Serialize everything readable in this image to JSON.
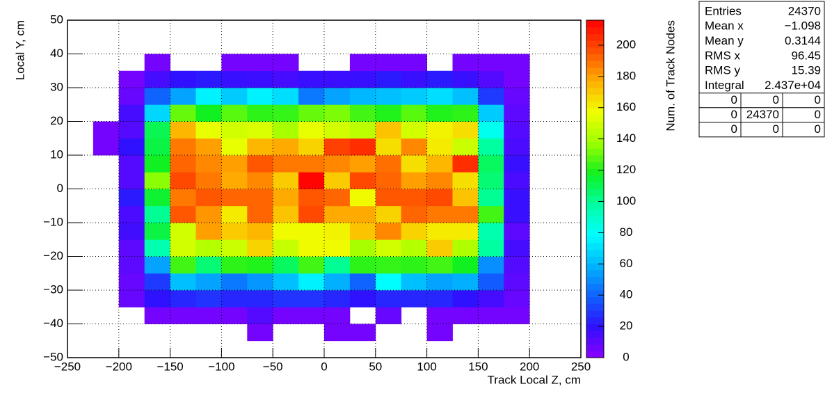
{
  "chart_data": {
    "type": "heatmap",
    "x_label": "Track Local Z, cm",
    "y_label": "Local Y, cm",
    "z_label": "Num. of Track Nodes",
    "x_bins": [
      -250,
      -225,
      -200,
      -175,
      -150,
      -125,
      -100,
      -75,
      -50,
      -25,
      0,
      25,
      50,
      75,
      100,
      125,
      150,
      175,
      200,
      225,
      250
    ],
    "y_bins": [
      -50,
      -45,
      -40,
      -35,
      -30,
      -25,
      -20,
      -15,
      -10,
      -5,
      0,
      5,
      10,
      15,
      20,
      25,
      30,
      35,
      40,
      45,
      50
    ],
    "z": [
      [
        0,
        0,
        0,
        0,
        0,
        0,
        0,
        0,
        0,
        0,
        0,
        0,
        0,
        0,
        0,
        0,
        0,
        0,
        0,
        0
      ],
      [
        0,
        0,
        0,
        0,
        0,
        0,
        0,
        5,
        0,
        0,
        5,
        5,
        0,
        0,
        5,
        0,
        0,
        0,
        0,
        0
      ],
      [
        0,
        0,
        0,
        5,
        5,
        5,
        5,
        12,
        5,
        5,
        5,
        0,
        8,
        0,
        5,
        5,
        5,
        5,
        0,
        0
      ],
      [
        0,
        0,
        8,
        20,
        25,
        28,
        25,
        25,
        28,
        28,
        25,
        20,
        25,
        25,
        25,
        20,
        15,
        8,
        0,
        0
      ],
      [
        0,
        0,
        8,
        30,
        62,
        55,
        45,
        52,
        62,
        75,
        58,
        40,
        78,
        62,
        55,
        58,
        38,
        10,
        0,
        0
      ],
      [
        0,
        0,
        10,
        55,
        125,
        105,
        122,
        120,
        108,
        125,
        100,
        122,
        123,
        122,
        125,
        118,
        50,
        12,
        0,
        0
      ],
      [
        0,
        0,
        10,
        95,
        150,
        143,
        148,
        168,
        147,
        158,
        158,
        140,
        150,
        143,
        170,
        142,
        98,
        15,
        0,
        0
      ],
      [
        0,
        0,
        16,
        112,
        150,
        180,
        170,
        175,
        158,
        158,
        160,
        172,
        185,
        168,
        162,
        162,
        95,
        10,
        0,
        0
      ],
      [
        0,
        0,
        14,
        100,
        195,
        182,
        162,
        192,
        172,
        198,
        178,
        178,
        168,
        192,
        188,
        188,
        125,
        18,
        0,
        0
      ],
      [
        0,
        0,
        22,
        115,
        188,
        195,
        192,
        192,
        178,
        195,
        192,
        158,
        195,
        195,
        198,
        172,
        100,
        18,
        0,
        0
      ],
      [
        0,
        0,
        12,
        135,
        198,
        188,
        178,
        185,
        170,
        215,
        170,
        198,
        192,
        180,
        185,
        165,
        105,
        14,
        0,
        0
      ],
      [
        0,
        0,
        12,
        118,
        192,
        185,
        180,
        195,
        188,
        188,
        185,
        180,
        190,
        165,
        175,
        205,
        108,
        18,
        0,
        0
      ],
      [
        0,
        5,
        20,
        112,
        188,
        180,
        155,
        175,
        178,
        168,
        200,
        205,
        165,
        185,
        162,
        148,
        98,
        14,
        0,
        0
      ],
      [
        0,
        5,
        12,
        110,
        175,
        155,
        150,
        152,
        140,
        155,
        150,
        145,
        172,
        150,
        160,
        165,
        82,
        12,
        0,
        0
      ],
      [
        0,
        0,
        15,
        68,
        130,
        118,
        128,
        122,
        123,
        130,
        133,
        125,
        120,
        128,
        120,
        122,
        65,
        10,
        0,
        0
      ],
      [
        0,
        0,
        8,
        40,
        55,
        75,
        65,
        75,
        70,
        45,
        55,
        60,
        62,
        65,
        70,
        62,
        30,
        8,
        0,
        0
      ],
      [
        0,
        0,
        5,
        15,
        20,
        22,
        18,
        17,
        15,
        18,
        17,
        18,
        22,
        18,
        22,
        18,
        12,
        5,
        0,
        0
      ],
      [
        0,
        0,
        0,
        5,
        0,
        0,
        5,
        5,
        5,
        0,
        0,
        5,
        5,
        5,
        0,
        5,
        5,
        5,
        0,
        0
      ],
      [
        0,
        0,
        0,
        0,
        0,
        0,
        0,
        0,
        0,
        0,
        0,
        0,
        0,
        0,
        0,
        0,
        0,
        0,
        0,
        0
      ],
      [
        0,
        0,
        0,
        0,
        0,
        0,
        0,
        0,
        0,
        0,
        0,
        0,
        0,
        0,
        0,
        0,
        0,
        0,
        0,
        0
      ]
    ],
    "xlim": [
      -250,
      250
    ],
    "ylim": [
      -50,
      50
    ],
    "zlim": [
      0,
      216
    ],
    "xticks": [
      {
        "value": -250,
        "label": "−250"
      },
      {
        "value": -200,
        "label": "−200"
      },
      {
        "value": -150,
        "label": "−150"
      },
      {
        "value": -100,
        "label": "−100"
      },
      {
        "value": -50,
        "label": "−50"
      },
      0,
      50,
      100,
      150,
      200,
      250
    ],
    "yticks": [
      {
        "value": -50,
        "label": "−50"
      },
      {
        "value": -40,
        "label": "−40"
      },
      {
        "value": -30,
        "label": "−30"
      },
      {
        "value": -20,
        "label": "−20"
      },
      {
        "value": -10,
        "label": "−10"
      },
      0,
      10,
      20,
      30,
      40,
      50
    ],
    "zticks": [
      0,
      20,
      40,
      60,
      80,
      100,
      120,
      140,
      160,
      180,
      200
    ],
    "grid": true,
    "palette": [
      "#8c00ff",
      "#3010ff",
      "#1060ff",
      "#00b4ff",
      "#00ffff",
      "#00ffa0",
      "#10f020",
      "#9cff00",
      "#f0ff00",
      "#ffb000",
      "#ff5000",
      "#ff0000"
    ],
    "stats": {
      "rows": [
        [
          "Entries",
          "24370"
        ],
        [
          "Mean x",
          "−1.098"
        ],
        [
          "Mean y",
          "0.3144"
        ],
        [
          "RMS x",
          "96.45"
        ],
        [
          "RMS y",
          "15.39"
        ],
        [
          "Integral",
          "2.437e+04"
        ]
      ],
      "overflow": [
        [
          "0",
          "0",
          "0"
        ],
        [
          "0",
          "24370",
          "0"
        ],
        [
          "0",
          "0",
          "0"
        ]
      ]
    }
  }
}
